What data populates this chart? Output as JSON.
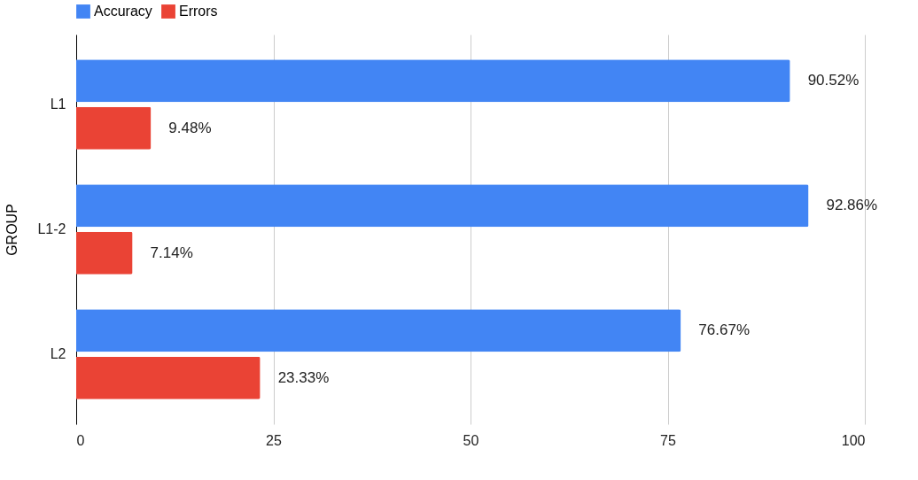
{
  "chart_data": {
    "type": "bar",
    "orientation": "horizontal",
    "ylabel": "GROUP",
    "categories": [
      "L1",
      "L1-2",
      "L2"
    ],
    "series": [
      {
        "name": "Accuracy",
        "color": "#4285f4",
        "values": [
          90.52,
          92.86,
          76.67
        ],
        "value_labels": [
          "90.52%",
          "92.86%",
          "76.67%"
        ]
      },
      {
        "name": "Errors",
        "color": "#ea4335",
        "values": [
          9.48,
          7.14,
          23.33
        ],
        "value_labels": [
          "9.48%",
          "7.14%",
          "23.33%"
        ]
      }
    ],
    "xlim": [
      0,
      100
    ],
    "xticks": [
      0,
      25,
      50,
      75,
      100
    ],
    "grid": "x",
    "legend": "top"
  }
}
